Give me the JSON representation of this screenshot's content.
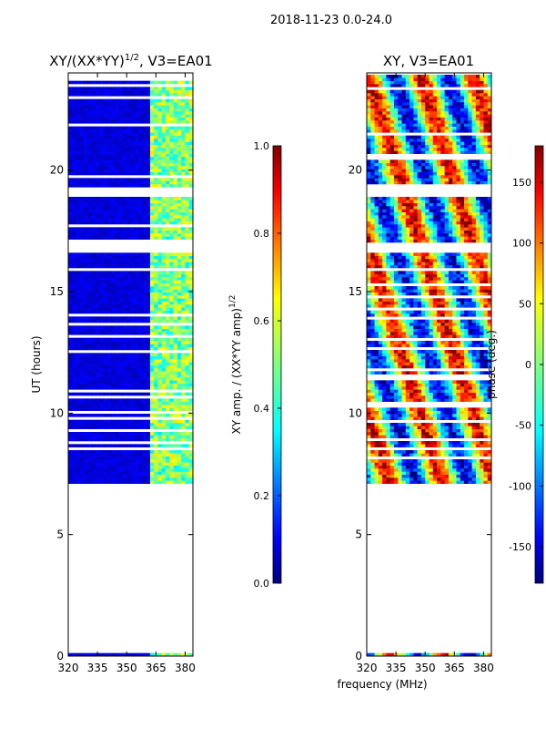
{
  "suptitle": "2018-11-23 0.0-24.0",
  "colors": {
    "frame": "#000000",
    "gap": "#ffffff",
    "background": "#ffffff"
  },
  "colormap_stops": [
    {
      "t": 0.0,
      "color": "#00007f"
    },
    {
      "t": 0.11,
      "color": "#0000ff"
    },
    {
      "t": 0.35,
      "color": "#00ffff"
    },
    {
      "t": 0.5,
      "color": "#7fff7f"
    },
    {
      "t": 0.65,
      "color": "#ffff00"
    },
    {
      "t": 0.89,
      "color": "#ff0000"
    },
    {
      "t": 1.0,
      "color": "#7f0000"
    }
  ],
  "chart_data": [
    {
      "type": "heatmap",
      "id": "amp",
      "title_prefix": "XY/(XX*YY)",
      "title_superscript": "1/2",
      "title_suffix": ", V3=EA01",
      "xlabel": "",
      "ylabel": "UT (hours)",
      "xlim": [
        320,
        384
      ],
      "ylim": [
        0,
        24
      ],
      "xticks": [
        "320",
        "335",
        "350",
        "365",
        "380"
      ],
      "yticks": [
        "0",
        "5",
        "10",
        "15",
        "20"
      ],
      "data_rows_hours": [
        [
          7.1,
          16.5
        ],
        [
          16.9,
          18.9
        ],
        [
          19.3,
          23.9
        ]
      ],
      "baseline_row_hour": 0,
      "high_amplitude_band_mhz": [
        361,
        384
      ],
      "typical_amplitude_low_band": 0.05,
      "typical_amplitude_high_band": 0.45,
      "colorbar": {
        "label_prefix": "XY amp. / (XX*YY amp)",
        "label_superscript": "1/2",
        "range": [
          0.0,
          1.0
        ],
        "ticks": [
          "0.0",
          "0.2",
          "0.4",
          "0.6",
          "0.8",
          "1.0"
        ]
      }
    },
    {
      "type": "heatmap",
      "id": "phase",
      "title": "XY, V3=EA01",
      "xlabel": "frequency (MHz)",
      "ylabel": "",
      "xlim": [
        320,
        384
      ],
      "ylim": [
        0,
        24
      ],
      "xticks": [
        "320",
        "335",
        "350",
        "365",
        "380"
      ],
      "yticks": [
        "0",
        "5",
        "10",
        "15",
        "20"
      ],
      "data_rows_hours": [
        [
          7.1,
          16.5
        ],
        [
          16.9,
          18.9
        ],
        [
          19.3,
          23.9
        ]
      ],
      "baseline_row_hour": 0,
      "phase_range_deg": [
        -180,
        180
      ],
      "colorbar": {
        "label": "phase (deg.)",
        "range": [
          -180,
          180
        ],
        "ticks": [
          "-150",
          "-100",
          "-50",
          "0",
          "50",
          "100",
          "150"
        ]
      }
    }
  ]
}
